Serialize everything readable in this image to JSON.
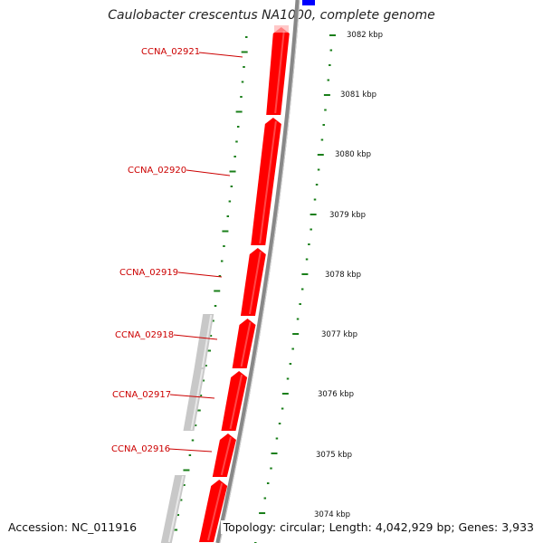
{
  "title": "Caulobacter crescentus NA1000, complete genome",
  "footer": {
    "accession": "Accession: NC_011916",
    "stats": "Topology: circular; Length: 4,042,929 bp; Genes: 3,933"
  },
  "colors": {
    "gene_forward": "#ff0000",
    "gene_other": "#c8c8c8",
    "backbone": "#888888",
    "ticks": "#1a7f1a",
    "label": "#cc0000",
    "highlight": "#0000ff"
  },
  "ruler": {
    "unit": "kbp",
    "labels": [
      "3082 kbp",
      "3081 kbp",
      "3080 kbp",
      "3079 kbp",
      "3078 kbp",
      "3077 kbp",
      "3076 kbp",
      "3075 kbp",
      "3074 kbp"
    ]
  },
  "genes": [
    {
      "locus": "CCNA_02921",
      "strand": "reverse",
      "color": "red"
    },
    {
      "locus": "CCNA_02920",
      "strand": "reverse",
      "color": "red"
    },
    {
      "locus": "CCNA_02919",
      "strand": "reverse",
      "color": "red"
    },
    {
      "locus": "CCNA_02918",
      "strand": "reverse",
      "color": "red"
    },
    {
      "locus": "CCNA_02917",
      "strand": "reverse",
      "color": "red"
    },
    {
      "locus": "CCNA_02916",
      "strand": "reverse",
      "color": "red"
    }
  ]
}
